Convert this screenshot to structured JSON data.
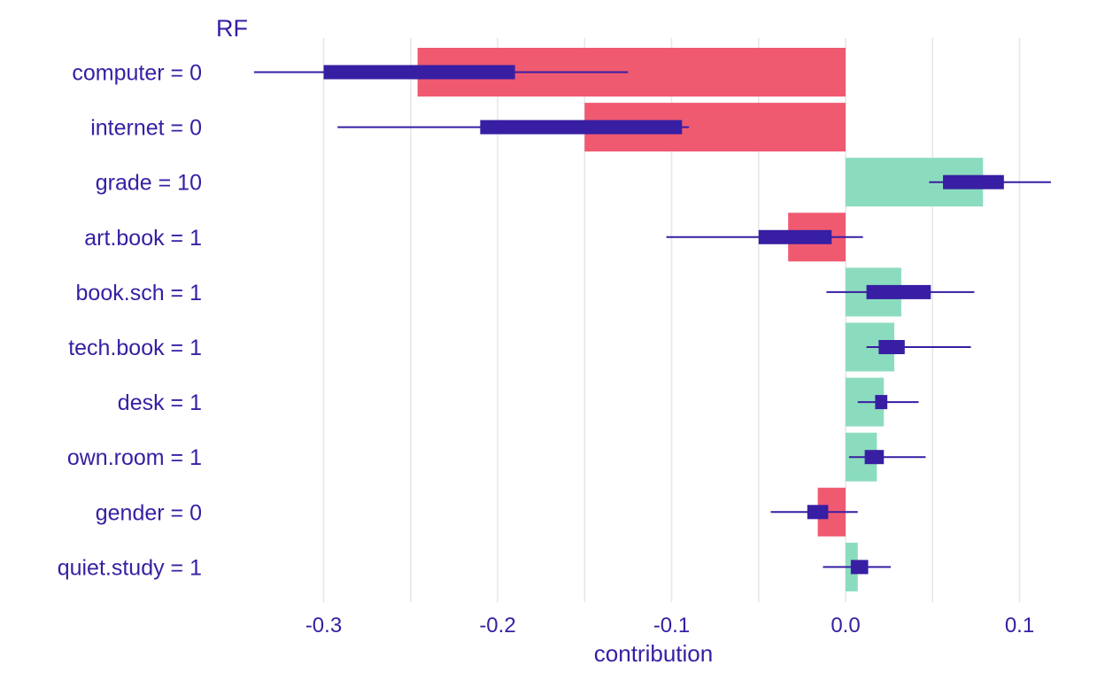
{
  "chart_data": {
    "type": "bar",
    "title": "RF",
    "xlabel": "contribution",
    "ylabel": "",
    "xlim": [
      -0.35,
      0.12
    ],
    "x_ticks": [
      -0.3,
      -0.2,
      -0.1,
      0.0,
      0.1
    ],
    "x_tick_labels": [
      "-0.3",
      "-0.2",
      "-0.1",
      "0.0",
      "0.1"
    ],
    "grid": true,
    "legend": "none",
    "colors": {
      "negative": "#f05a71",
      "positive": "#8bdcbe",
      "boxplot": "#371ea3",
      "grid": "#e6e6e6",
      "text": "#371ea3"
    },
    "categories": [
      "computer = 0",
      "internet = 0",
      "grade = 10",
      "art.book = 1",
      "book.sch = 1",
      "tech.book = 1",
      "desk = 1",
      "own.room = 1",
      "gender = 0",
      "quiet.study = 1"
    ],
    "values": [
      -0.246,
      -0.15,
      0.079,
      -0.033,
      0.032,
      0.028,
      0.022,
      0.018,
      -0.016,
      0.007
    ],
    "intervals": [
      {
        "min": -0.34,
        "q1": -0.3,
        "q3": -0.19,
        "max": -0.125
      },
      {
        "min": -0.292,
        "q1": -0.21,
        "q3": -0.094,
        "max": -0.09
      },
      {
        "min": 0.048,
        "q1": 0.056,
        "q3": 0.091,
        "max": 0.118
      },
      {
        "min": -0.103,
        "q1": -0.05,
        "q3": -0.008,
        "max": 0.01
      },
      {
        "min": -0.011,
        "q1": 0.012,
        "q3": 0.049,
        "max": 0.074
      },
      {
        "min": 0.012,
        "q1": 0.019,
        "q3": 0.034,
        "max": 0.072
      },
      {
        "min": 0.007,
        "q1": 0.017,
        "q3": 0.024,
        "max": 0.042
      },
      {
        "min": 0.002,
        "q1": 0.011,
        "q3": 0.022,
        "max": 0.046
      },
      {
        "min": -0.043,
        "q1": -0.022,
        "q3": -0.01,
        "max": 0.007
      },
      {
        "min": -0.013,
        "q1": 0.003,
        "q3": 0.013,
        "max": 0.026
      }
    ]
  }
}
